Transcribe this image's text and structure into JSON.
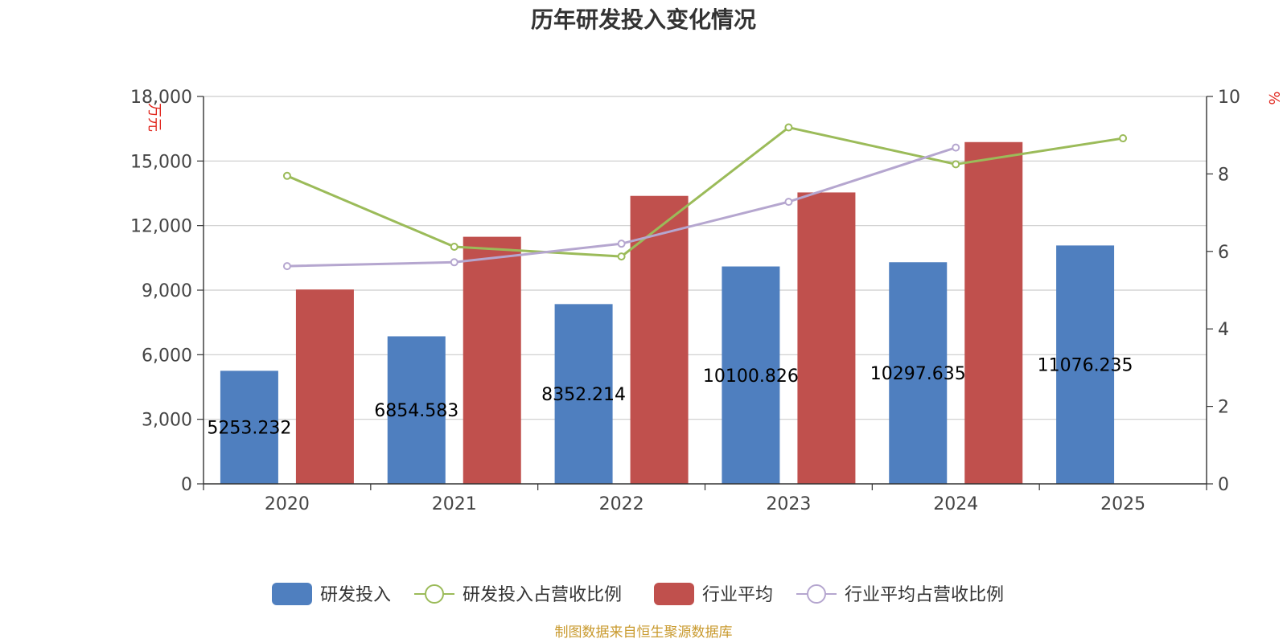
{
  "chart_data": {
    "type": "bar",
    "title": "历年研发投入变化情况",
    "categories": [
      "2020",
      "2021",
      "2022",
      "2023",
      "2024",
      "2025"
    ],
    "y_left": {
      "unit": "万元",
      "ylim": [
        0,
        18000
      ],
      "ticks": [
        "0",
        "3,000",
        "6,000",
        "9,000",
        "12,000",
        "15,000",
        "18,000"
      ]
    },
    "y_right": {
      "unit": "%",
      "ylim": [
        0,
        10
      ],
      "ticks": [
        "0",
        "2",
        "4",
        "6",
        "8",
        "10"
      ]
    },
    "grid": true,
    "legend_position": "bottom",
    "series": [
      {
        "name": "研发投入",
        "type": "bar",
        "axis": "left",
        "color": "#4f7fbf",
        "values": [
          5253.232,
          6854.583,
          8352.214,
          10100.826,
          10297.635,
          11076.235
        ],
        "labels": [
          "5253.232",
          "6854.583",
          "8352.214",
          "10100.826",
          "10297.635",
          "11076.235"
        ]
      },
      {
        "name": "研发投入占营收比例",
        "type": "line",
        "axis": "right",
        "color": "#9bbb59",
        "values": [
          7.95,
          6.12,
          5.87,
          9.2,
          8.25,
          8.92
        ]
      },
      {
        "name": "行业平均",
        "type": "bar",
        "axis": "left",
        "color": "#c0504d",
        "values": [
          9030,
          11480,
          13380,
          13540,
          15880,
          null
        ]
      },
      {
        "name": "行业平均占营收比例",
        "type": "line",
        "axis": "right",
        "color": "#b5a6cf",
        "values": [
          5.62,
          5.72,
          6.2,
          7.28,
          8.68,
          null
        ]
      }
    ],
    "source": "制图数据来自恒生聚源数据库"
  }
}
